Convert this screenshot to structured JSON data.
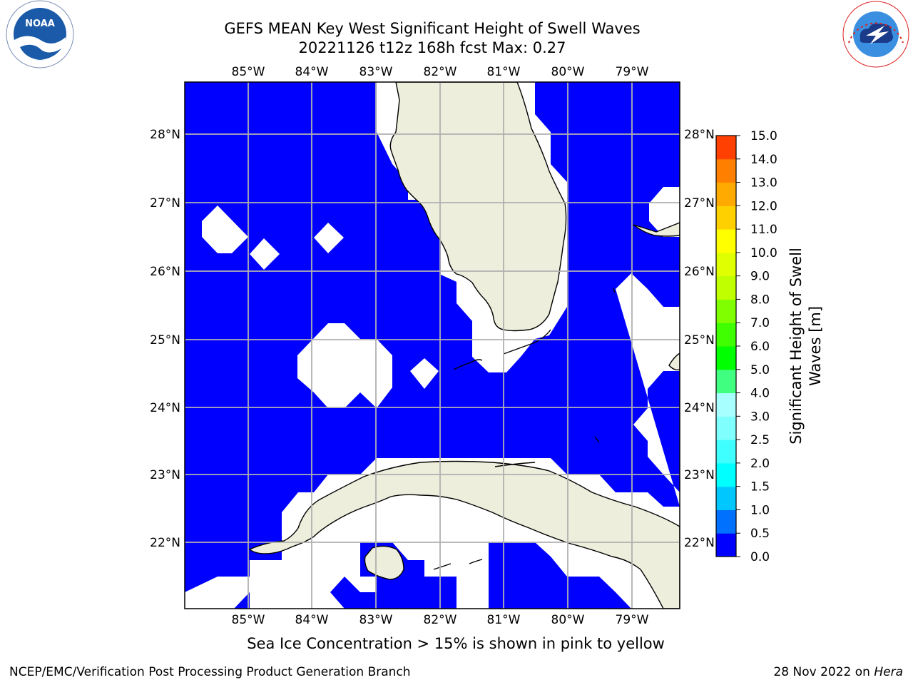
{
  "header": {
    "title_line1": "GEFS MEAN Key West Significant Height of Swell Waves",
    "title_line2": "20221126 t12z 168h fcst   Max: 0.27"
  },
  "logos": {
    "left": {
      "text": "NOAA",
      "ring_text": "NATIONAL OCEANIC AND ATMOSPHERIC ADMINISTRATION · U.S. DEPARTMENT OF COMMERCE"
    },
    "right": {
      "ring_text": "NATIONAL WEATHER SERVICE"
    }
  },
  "map": {
    "lon_labels": [
      "85°W",
      "84°W",
      "83°W",
      "82°W",
      "81°W",
      "80°W",
      "79°W"
    ],
    "lat_labels": [
      "28°N",
      "27°N",
      "26°N",
      "25°N",
      "24°N",
      "23°N",
      "22°N"
    ],
    "colors": {
      "ocean": "#0000ff",
      "land": "#eeeedd",
      "missing": "#ffffff",
      "grid": "#b0b0b0"
    }
  },
  "colorbar": {
    "label_line1": "Significant Height of Swell",
    "label_line2": "Waves [m]",
    "ticks": [
      "0.0",
      "0.5",
      "1.0",
      "1.5",
      "2.0",
      "2.5",
      "3.0",
      "4.0",
      "5.0",
      "6.0",
      "7.0",
      "8.0",
      "9.0",
      "10.0",
      "11.0",
      "12.0",
      "13.0",
      "14.0",
      "15.0"
    ],
    "colors": [
      "#0000ff",
      "#0070ff",
      "#00c8ff",
      "#00ffff",
      "#40ffff",
      "#80ffff",
      "#a8ffff",
      "#40ff80",
      "#00ff00",
      "#40ff00",
      "#80ff00",
      "#c0ff00",
      "#e0ff00",
      "#ffff00",
      "#ffd000",
      "#ffaa00",
      "#ff8000",
      "#ff4000",
      "#ff0000"
    ]
  },
  "subtitle": "Sea Ice Concentration > 15% is shown in pink to yellow",
  "footer": {
    "left": "NCEP/EMC/Verification Post Processing Product Generation Branch",
    "right_prefix": "28 Nov 2022 on ",
    "right_host": "Hera"
  }
}
